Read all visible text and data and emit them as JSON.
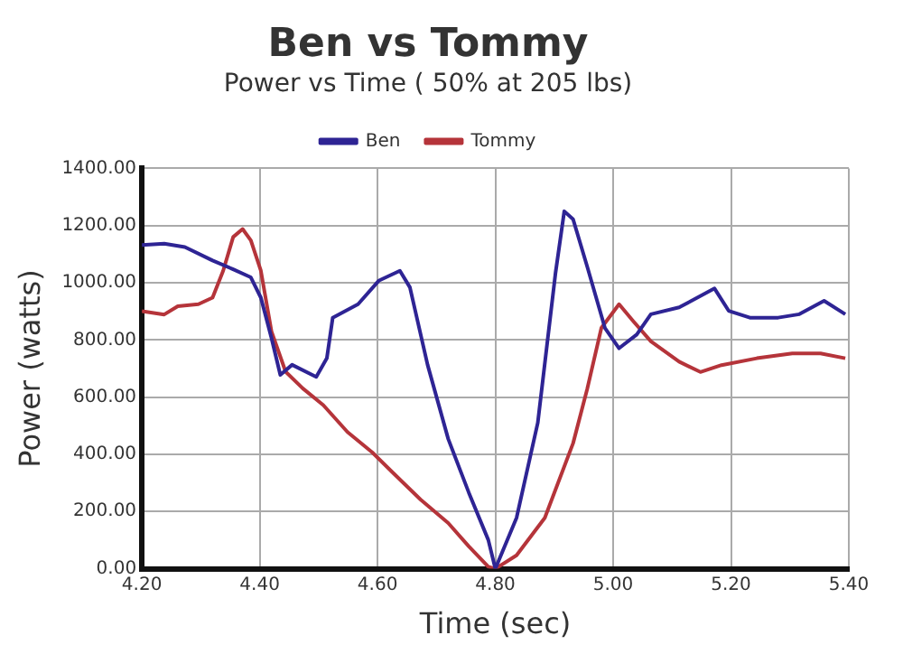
{
  "chart_data": {
    "type": "line",
    "title": "Ben vs Tommy",
    "subtitle": "Power vs Time ( 50% at 205 lbs)",
    "xlabel": "Time (sec)",
    "ylabel": "Power (watts)",
    "series": [
      {
        "name": "Ben",
        "color": "#2e2494",
        "x": [
          4.2,
          4.238,
          4.273,
          4.32,
          4.355,
          4.385,
          4.402,
          4.42,
          4.435,
          4.455,
          4.496,
          4.514,
          4.524,
          4.567,
          4.602,
          4.638,
          4.655,
          4.685,
          4.72,
          4.755,
          4.788,
          4.8,
          4.836,
          4.872,
          4.902,
          4.917,
          4.932,
          4.956,
          4.986,
          5.01,
          5.04,
          5.064,
          5.112,
          5.172,
          5.196,
          5.232,
          5.28,
          5.316,
          5.358,
          5.394
        ],
        "values": [
          1132,
          1137,
          1125,
          1078,
          1047,
          1019,
          948,
          807,
          678,
          713,
          671,
          736,
          878,
          925,
          1007,
          1042,
          984,
          713,
          454,
          266,
          101,
          0,
          178,
          510,
          1032,
          1250,
          1222,
          1056,
          842,
          771,
          819,
          890,
          914,
          980,
          902,
          878,
          878,
          890,
          937,
          890
        ]
      },
      {
        "name": "Tommy",
        "color": "#b5343a",
        "x": [
          4.2,
          4.238,
          4.261,
          4.296,
          4.32,
          4.338,
          4.355,
          4.371,
          4.385,
          4.402,
          4.42,
          4.444,
          4.473,
          4.508,
          4.549,
          4.591,
          4.626,
          4.673,
          4.72,
          4.755,
          4.788,
          4.8,
          4.836,
          4.884,
          4.932,
          4.956,
          4.98,
          5.01,
          5.034,
          5.064,
          5.112,
          5.148,
          5.184,
          5.244,
          5.304,
          5.352,
          5.394
        ],
        "values": [
          901,
          889,
          918,
          925,
          948,
          1042,
          1160,
          1188,
          1148,
          1042,
          830,
          689,
          631,
          572,
          478,
          407,
          336,
          242,
          160,
          78,
          7,
          0,
          47,
          178,
          439,
          629,
          842,
          925,
          866,
          795,
          724,
          688,
          712,
          736,
          753,
          753,
          736
        ]
      }
    ],
    "xlim": [
      4.2,
      5.4
    ],
    "xticks": [
      {
        "value": 4.2,
        "label": "4.20"
      },
      {
        "value": 4.4,
        "label": "4.40"
      },
      {
        "value": 4.6,
        "label": "4.60"
      },
      {
        "value": 4.8,
        "label": "4.80"
      },
      {
        "value": 5.0,
        "label": "5.00"
      },
      {
        "value": 5.2,
        "label": "5.20"
      },
      {
        "value": 5.4,
        "label": "5.40"
      }
    ],
    "ylim": [
      0,
      1400
    ],
    "yticks": [
      {
        "value": 0,
        "label": "0.00"
      },
      {
        "value": 200,
        "label": "200.00"
      },
      {
        "value": 400,
        "label": "400.00"
      },
      {
        "value": 600,
        "label": "600.00"
      },
      {
        "value": 800,
        "label": "800.00"
      },
      {
        "value": 1000,
        "label": "1000.00"
      },
      {
        "value": 1200,
        "label": "1200.00"
      },
      {
        "value": 1400,
        "label": "1400.00"
      }
    ],
    "grid": true,
    "legend": "top",
    "marker": "none",
    "line_style": "solid"
  }
}
